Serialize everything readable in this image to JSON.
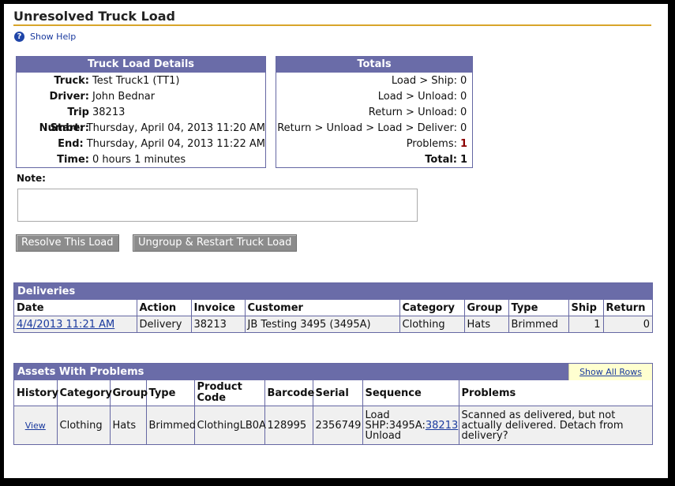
{
  "page": {
    "title": "Unresolved Truck Load",
    "help_label": "Show Help"
  },
  "details": {
    "header": "Truck Load Details",
    "rows": [
      {
        "label": "Truck:",
        "value": "Test Truck1 (TT1)"
      },
      {
        "label": "Driver:",
        "value": "John Bednar"
      },
      {
        "label": "Trip Number:",
        "value": "38213"
      },
      {
        "label": "Start:",
        "value": "Thursday, April 04, 2013 11:20 AM"
      },
      {
        "label": "End:",
        "value": "Thursday, April 04, 2013 11:22 AM"
      },
      {
        "label": "Time:",
        "value": "0 hours 1 minutes"
      }
    ]
  },
  "totals": {
    "header": "Totals",
    "rows": [
      {
        "label": "Load > Ship:",
        "value": "0"
      },
      {
        "label": "Load > Unload:",
        "value": "0"
      },
      {
        "label": "Return > Unload:",
        "value": "0"
      },
      {
        "label": "Return > Unload > Load > Deliver:",
        "value": "0"
      },
      {
        "label": "Problems:",
        "value": "1"
      },
      {
        "label": "Total:",
        "value": "1"
      }
    ]
  },
  "note": {
    "label": "Note:",
    "value": ""
  },
  "buttons": {
    "resolve": "Resolve This Load",
    "ungroup": "Ungroup & Restart Truck Load"
  },
  "deliveries": {
    "header": "Deliveries",
    "columns": [
      "Date",
      "Action",
      "Invoice",
      "Customer",
      "Category",
      "Group",
      "Type",
      "Ship",
      "Return"
    ],
    "rows": [
      {
        "date": "4/4/2013 11:21 AM",
        "action": "Delivery",
        "invoice": "38213",
        "customer": "JB Testing 3495 (3495A)",
        "category": "Clothing",
        "group": "Hats",
        "type": "Brimmed",
        "ship": "1",
        "return": "0"
      }
    ]
  },
  "assets": {
    "header": "Assets With Problems",
    "show_all": "Show All Rows",
    "columns": [
      "History",
      "Category",
      "Group",
      "Type",
      "Product Code",
      "Barcode",
      "Serial",
      "Sequence",
      "Problems"
    ],
    "rows": [
      {
        "history": "View",
        "category": "Clothing",
        "group": "Hats",
        "type": "Brimmed",
        "product_code": "ClothingLB0A",
        "barcode": "128995",
        "serial": "2356749",
        "seq_line1": "Load",
        "seq_prefix": "SHP:3495A:",
        "seq_link": "38213",
        "seq_line3": "Unload",
        "problems": "Scanned as delivered, but not actually delivered. Detach from delivery?"
      }
    ]
  }
}
